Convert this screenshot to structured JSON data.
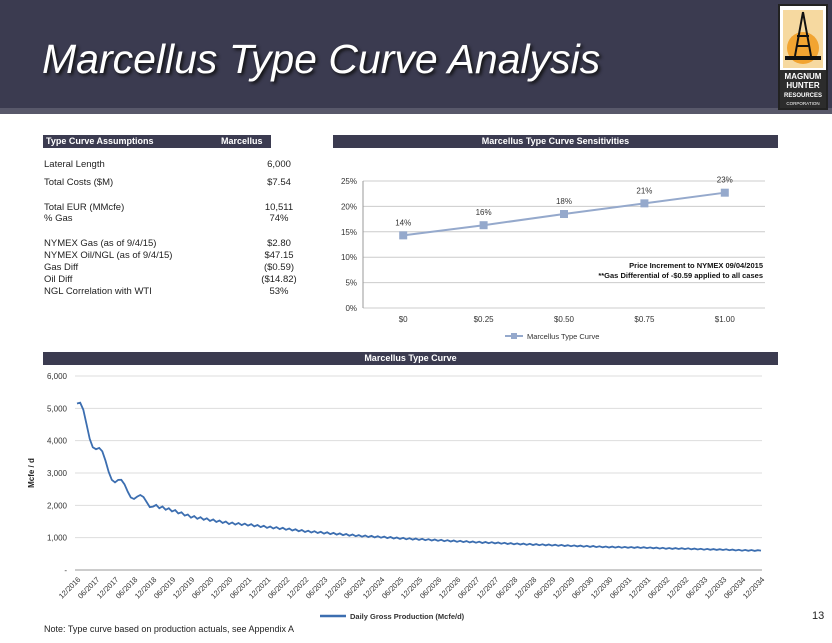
{
  "title": "Marcellus Type Curve Analysis",
  "logo": {
    "text": [
      "MAGNUM",
      "HUNTER",
      "RESOURCES",
      "CORPORATION"
    ]
  },
  "assumptions": {
    "header_label": "Type Curve Assumptions",
    "header_value": "Marcellus",
    "rows": [
      [
        "Lateral Length",
        "6,000"
      ],
      [
        "Total Costs ($M)",
        "$7.54"
      ],
      [
        "Total EUR (MMcfe)",
        "10,511"
      ],
      [
        "% Gas",
        "74%"
      ],
      [
        "NYMEX Gas (as of 9/4/15)",
        "$2.80"
      ],
      [
        "NYMEX Oil/NGL (as of 9/4/15)",
        "$47.15"
      ],
      [
        "Gas Diff",
        "($0.59)"
      ],
      [
        "Oil Diff",
        "($14.82)"
      ],
      [
        "NGL Correlation with WTI",
        "53%"
      ]
    ]
  },
  "chart_data": [
    {
      "type": "line",
      "title": "Marcellus Type Curve Sensitivities",
      "categories": [
        "$0",
        "$0.25",
        "$0.50",
        "$0.75",
        "$1.00"
      ],
      "series": [
        {
          "name": "Marcellus Type Curve",
          "values": [
            14.3,
            16.3,
            18.5,
            20.6,
            22.7
          ],
          "labels": [
            "14%",
            "16%",
            "18%",
            "21%",
            "23%"
          ]
        }
      ],
      "yticks": [
        "0%",
        "5%",
        "10%",
        "15%",
        "20%",
        "25%"
      ],
      "ylim": [
        0,
        25
      ],
      "color": "#95a9cc",
      "annotations": [
        "Price Increment to NYMEX 09/04/2015",
        "**Gas  Differential of -$0.59 applied to all cases"
      ]
    },
    {
      "type": "line",
      "title": "Marcellus Type Curve",
      "ylabel": "Mcfe / d",
      "ylim": [
        0,
        6000
      ],
      "yticks": [
        "-",
        "1,000",
        "2,000",
        "3,000",
        "4,000",
        "5,000",
        "6,000"
      ],
      "categories": [
        "12/2016",
        "06/2017",
        "12/2017",
        "06/2018",
        "12/2018",
        "06/2019",
        "12/2019",
        "06/2020",
        "12/2020",
        "06/2021",
        "12/2021",
        "06/2022",
        "12/2022",
        "06/2023",
        "12/2023",
        "06/2024",
        "12/2024",
        "06/2025",
        "12/2025",
        "06/2026",
        "12/2026",
        "06/2027",
        "12/2027",
        "06/2028",
        "12/2028",
        "06/2029",
        "12/2029",
        "06/2030",
        "12/2030",
        "06/2031",
        "12/2031",
        "06/2032",
        "12/2032",
        "06/2033",
        "12/2033",
        "06/2034",
        "12/2034"
      ],
      "series": [
        {
          "name": "Daily Gross Production (Mcfe/d)",
          "values": [
            5150,
            3800,
            2800,
            2300,
            2000,
            1850,
            1650,
            1550,
            1450,
            1400,
            1330,
            1270,
            1200,
            1150,
            1100,
            1050,
            1020,
            980,
            950,
            920,
            890,
            860,
            840,
            810,
            790,
            770,
            750,
            730,
            710,
            700,
            690,
            670,
            660,
            640,
            630,
            610,
            600
          ]
        }
      ],
      "color": "#3c6eb0"
    }
  ],
  "note": "Note: Type curve based on production actuals, see Appendix A",
  "page_number": "13"
}
